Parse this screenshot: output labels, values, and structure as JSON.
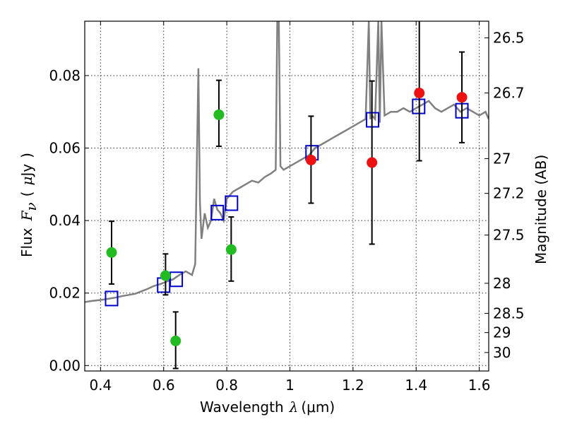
{
  "chart_data": {
    "type": "scatter",
    "xlabel_text": "Wavelength",
    "xlabel_symbol": "λ",
    "xlabel_unit": "(μm)",
    "ylabel_text": "Flux",
    "ylabel_symbol": "F",
    "ylabel_subscript": "ν",
    "ylabel_unit_open": "(",
    "ylabel_unit_mu": "μ",
    "ylabel_unit_rest": "Jy",
    "ylabel_unit_close": ")",
    "ylabel_right": "Magnitude (AB)",
    "xlim": [
      0.35,
      1.63
    ],
    "ylim": [
      -0.0015,
      0.095
    ],
    "grid": true,
    "x_ticks": [
      {
        "value": 0.4,
        "label": "0.4"
      },
      {
        "value": 0.6,
        "label": "0.6"
      },
      {
        "value": 0.8,
        "label": "0.8"
      },
      {
        "value": 1.0,
        "label": "1"
      },
      {
        "value": 1.2,
        "label": "1.2"
      },
      {
        "value": 1.4,
        "label": "1.4"
      },
      {
        "value": 1.6,
        "label": "1.6"
      }
    ],
    "y_ticks": [
      {
        "value": 0.0,
        "label": "0.00"
      },
      {
        "value": 0.02,
        "label": "0.02"
      },
      {
        "value": 0.04,
        "label": "0.04"
      },
      {
        "value": 0.06,
        "label": "0.06"
      },
      {
        "value": 0.08,
        "label": "0.08"
      }
    ],
    "right_ticks": [
      {
        "label": "26.5",
        "flux": 0.0904
      },
      {
        "label": "26.7",
        "flux": 0.0752
      },
      {
        "label": "27",
        "flux": 0.0571
      },
      {
        "label": "27.2",
        "flux": 0.0475
      },
      {
        "label": "27.5",
        "flux": 0.036
      },
      {
        "label": "28",
        "flux": 0.0227
      },
      {
        "label": "28.5",
        "flux": 0.0144
      },
      {
        "label": "29",
        "flux": 0.0091
      },
      {
        "label": "30",
        "flux": 0.0036
      }
    ],
    "series": [
      {
        "kind": "line",
        "color": "#808080",
        "x": [
          0.35,
          0.37,
          0.39,
          0.41,
          0.43,
          0.45,
          0.47,
          0.49,
          0.51,
          0.53,
          0.55,
          0.57,
          0.59,
          0.61,
          0.63,
          0.65,
          0.67,
          0.69,
          0.7,
          0.71,
          0.715,
          0.72,
          0.73,
          0.74,
          0.75,
          0.76,
          0.77,
          0.78,
          0.79,
          0.8,
          0.82,
          0.84,
          0.86,
          0.88,
          0.9,
          0.92,
          0.94,
          0.955,
          0.96,
          0.965,
          0.97,
          0.98,
          1.0,
          1.02,
          1.04,
          1.06,
          1.08,
          1.1,
          1.12,
          1.14,
          1.16,
          1.18,
          1.2,
          1.22,
          1.24,
          1.25,
          1.255,
          1.26,
          1.27,
          1.28,
          1.285,
          1.29,
          1.3,
          1.32,
          1.34,
          1.36,
          1.38,
          1.4,
          1.42,
          1.44,
          1.46,
          1.48,
          1.5,
          1.52,
          1.54,
          1.56,
          1.58,
          1.6,
          1.62,
          1.63
        ],
        "y": [
          0.0175,
          0.0178,
          0.018,
          0.0182,
          0.0185,
          0.0188,
          0.0192,
          0.0195,
          0.0198,
          0.0205,
          0.0212,
          0.022,
          0.0225,
          0.0232,
          0.0238,
          0.025,
          0.026,
          0.025,
          0.028,
          0.082,
          0.045,
          0.035,
          0.042,
          0.038,
          0.04,
          0.046,
          0.043,
          0.042,
          0.04,
          0.046,
          0.048,
          0.049,
          0.05,
          0.051,
          0.0505,
          0.052,
          0.053,
          0.054,
          0.095,
          0.095,
          0.055,
          0.054,
          0.055,
          0.056,
          0.057,
          0.058,
          0.06,
          0.061,
          0.062,
          0.063,
          0.064,
          0.065,
          0.066,
          0.067,
          0.068,
          0.095,
          0.068,
          0.069,
          0.068,
          0.095,
          0.067,
          0.095,
          0.069,
          0.07,
          0.07,
          0.071,
          0.07,
          0.071,
          0.072,
          0.073,
          0.071,
          0.07,
          0.071,
          0.072,
          0.07,
          0.071,
          0.07,
          0.069,
          0.07,
          0.068
        ]
      },
      {
        "kind": "points",
        "color": "#22bb22",
        "points": [
          {
            "x": 0.435,
            "y": 0.0312,
            "lo": 0.0225,
            "hi": 0.0398
          },
          {
            "x": 0.606,
            "y": 0.0248,
            "lo": 0.0195,
            "hi": 0.0308
          },
          {
            "x": 0.638,
            "y": 0.0068,
            "lo": -0.0008,
            "hi": 0.0148
          },
          {
            "x": 0.775,
            "y": 0.0692,
            "lo": 0.0605,
            "hi": 0.0787
          },
          {
            "x": 0.814,
            "y": 0.032,
            "lo": 0.0233,
            "hi": 0.041
          }
        ]
      },
      {
        "kind": "points",
        "color": "#ee1111",
        "points": [
          {
            "x": 1.067,
            "y": 0.0567,
            "lo": 0.0448,
            "hi": 0.0688
          },
          {
            "x": 1.26,
            "y": 0.056,
            "lo": 0.0335,
            "hi": 0.0785
          },
          {
            "x": 1.41,
            "y": 0.0752,
            "lo": 0.0565,
            "hi": 0.095
          },
          {
            "x": 1.545,
            "y": 0.074,
            "lo": 0.0615,
            "hi": 0.0865
          }
        ]
      },
      {
        "kind": "squares",
        "color": "#0000cc",
        "points": [
          {
            "x": 0.435,
            "y": 0.0185
          },
          {
            "x": 0.6,
            "y": 0.0222
          },
          {
            "x": 0.64,
            "y": 0.0238
          },
          {
            "x": 0.77,
            "y": 0.0422
          },
          {
            "x": 0.815,
            "y": 0.0448
          },
          {
            "x": 1.07,
            "y": 0.0587
          },
          {
            "x": 1.262,
            "y": 0.0678
          },
          {
            "x": 1.408,
            "y": 0.0715
          },
          {
            "x": 1.545,
            "y": 0.0703
          }
        ]
      }
    ]
  }
}
